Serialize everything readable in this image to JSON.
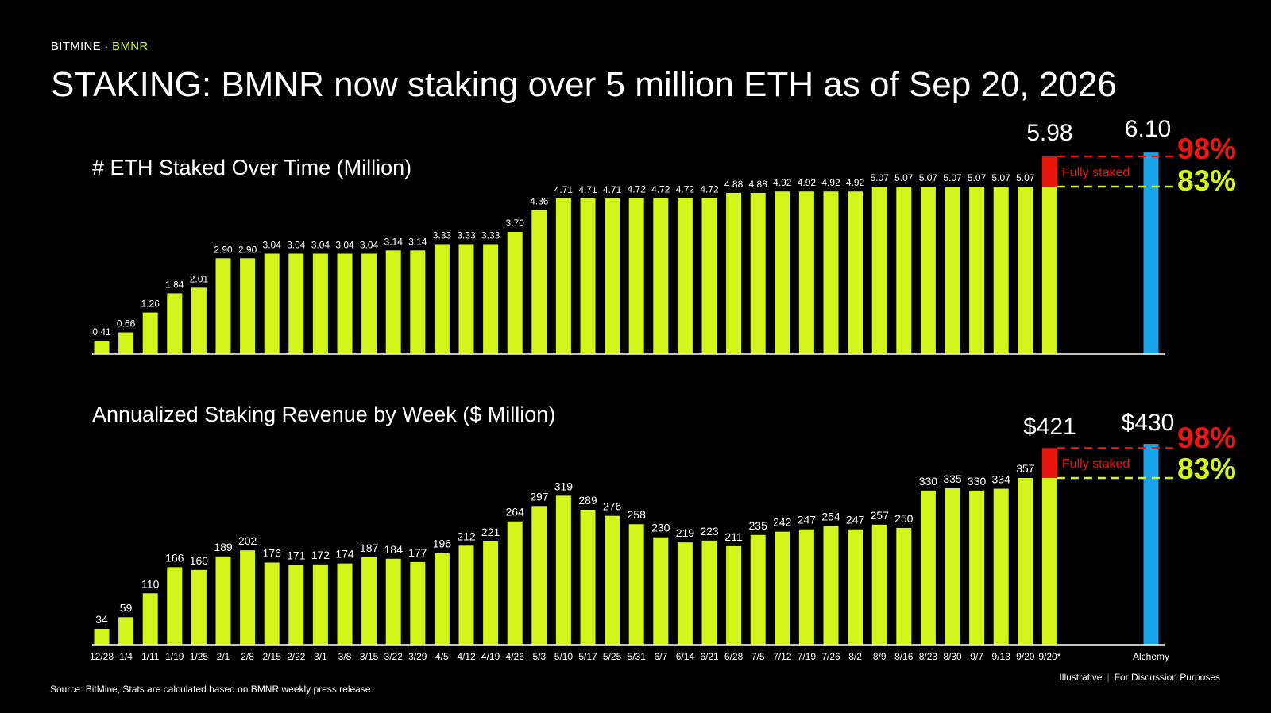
{
  "brand": {
    "company": "BITMINE",
    "separator": " · ",
    "ticker": "BMNR"
  },
  "title": "STAKING: BMNR now staking over 5 million ETH as of Sep 20, 2026",
  "footer": {
    "source": "Source: BitMine, Stats are calculated based on BMNR weekly press release.",
    "note_left": "Illustrative",
    "note_sep": "|",
    "note_right": "For Discussion Purposes"
  },
  "colors": {
    "bar": "#D4F51B",
    "alchemy": "#1AA3E8",
    "fully_staked": "#E8170F",
    "background": "#000000",
    "text": "#FFFFFF"
  },
  "chart_data": [
    {
      "type": "bar",
      "title": "# ETH Staked Over Time (Million)",
      "categories": [
        "12/28",
        "1/4",
        "1/11",
        "1/19",
        "1/25",
        "2/1",
        "2/8",
        "2/15",
        "2/22",
        "3/1",
        "3/8",
        "3/15",
        "3/22",
        "3/29",
        "4/5",
        "4/12",
        "4/19",
        "4/26",
        "5/3",
        "5/10",
        "5/17",
        "5/25",
        "5/31",
        "6/7",
        "6/14",
        "6/21",
        "6/28",
        "7/5",
        "7/12",
        "7/19",
        "7/26",
        "8/2",
        "8/9",
        "8/16",
        "8/23",
        "8/30",
        "9/7",
        "9/13",
        "9/20",
        "9/20*"
      ],
      "values": [
        0.41,
        0.66,
        1.26,
        1.84,
        2.01,
        2.9,
        2.9,
        3.04,
        3.04,
        3.04,
        3.04,
        3.04,
        3.14,
        3.14,
        3.33,
        3.33,
        3.33,
        3.7,
        4.36,
        4.71,
        4.71,
        4.71,
        4.72,
        4.72,
        4.72,
        4.72,
        4.88,
        4.88,
        4.92,
        4.92,
        4.92,
        4.92,
        5.07,
        5.07,
        5.07,
        5.07,
        5.07,
        5.07,
        5.07,
        5.07
      ],
      "value_labels": [
        "0.41",
        "0.66",
        "1.26",
        "1.84",
        "2.01",
        "2.90",
        "2.90",
        "3.04",
        "3.04",
        "3.04",
        "3.04",
        "3.04",
        "3.14",
        "3.14",
        "3.33",
        "3.33",
        "3.33",
        "3.70",
        "4.36",
        "4.71",
        "4.71",
        "4.71",
        "4.72",
        "4.72",
        "4.72",
        "4.72",
        "4.88",
        "4.88",
        "4.92",
        "4.92",
        "4.92",
        "4.92",
        "5.07",
        "5.07",
        "5.07",
        "5.07",
        "5.07",
        "5.07",
        "5.07",
        ""
      ],
      "projection": {
        "category": "9/20*",
        "value": 5.98,
        "label": "5.98"
      },
      "alchemy": {
        "category": "Alchemy",
        "value": 6.1,
        "label": "6.10"
      },
      "fully_staked_label": "Fully staked",
      "pct_high": "98%",
      "pct_low": "83%"
    },
    {
      "type": "bar",
      "title": "Annualized Staking Revenue by Week ($ Million)",
      "categories": [
        "12/28",
        "1/4",
        "1/11",
        "1/19",
        "1/25",
        "2/1",
        "2/8",
        "2/15",
        "2/22",
        "3/1",
        "3/8",
        "3/15",
        "3/22",
        "3/29",
        "4/5",
        "4/12",
        "4/19",
        "4/26",
        "5/3",
        "5/10",
        "5/17",
        "5/25",
        "5/31",
        "6/7",
        "6/14",
        "6/21",
        "6/28",
        "7/5",
        "7/12",
        "7/19",
        "7/26",
        "8/2",
        "8/9",
        "8/16",
        "8/23",
        "8/30",
        "9/7",
        "9/13",
        "9/20",
        "9/20*"
      ],
      "values": [
        34,
        59,
        110,
        166,
        160,
        189,
        202,
        176,
        171,
        172,
        174,
        187,
        184,
        177,
        196,
        212,
        221,
        264,
        297,
        319,
        289,
        276,
        258,
        230,
        219,
        223,
        211,
        235,
        242,
        247,
        254,
        247,
        257,
        250,
        330,
        335,
        330,
        334,
        357,
        357
      ],
      "value_labels": [
        "34",
        "59",
        "110",
        "166",
        "160",
        "189",
        "202",
        "176",
        "171",
        "172",
        "174",
        "187",
        "184",
        "177",
        "196",
        "212",
        "221",
        "264",
        "297",
        "319",
        "289",
        "276",
        "258",
        "230",
        "219",
        "223",
        "211",
        "235",
        "242",
        "247",
        "254",
        "247",
        "257",
        "250",
        "330",
        "335",
        "330",
        "334",
        "357",
        ""
      ],
      "projection": {
        "category": "9/20*",
        "value": 421,
        "label": "$421"
      },
      "alchemy": {
        "category": "Alchemy",
        "value": 430,
        "label": "$430"
      },
      "fully_staked_label": "Fully staked",
      "pct_high": "98%",
      "pct_low": "83%"
    }
  ]
}
